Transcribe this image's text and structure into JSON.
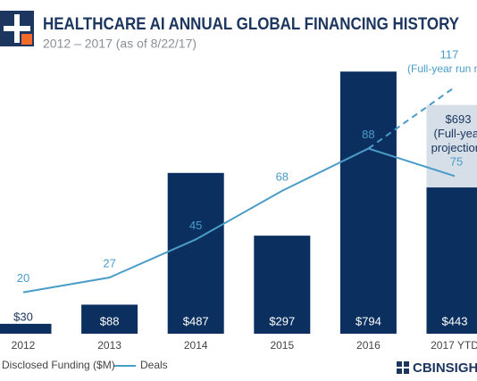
{
  "chart_data": {
    "type": "bar",
    "title": "HEALTHCARE AI ANNUAL GLOBAL FINANCING HISTORY",
    "subtitle": "2012 – 2017 (as of 8/22/17)",
    "categories": [
      "2012",
      "2013",
      "2014",
      "2015",
      "2016",
      "2017 YTD"
    ],
    "series": [
      {
        "name": "Disclosed Funding ($M)",
        "type": "bar",
        "color": "#0b2f5e",
        "values": [
          30,
          88,
          487,
          297,
          794,
          443
        ],
        "value_labels": [
          "$30",
          "$88",
          "$487",
          "$297",
          "$794",
          "$443"
        ]
      },
      {
        "name": "Deals",
        "type": "line",
        "color": "#4a9cc9",
        "values": [
          20,
          27,
          45,
          68,
          88,
          75
        ]
      }
    ],
    "projections": {
      "deals": {
        "value": 117,
        "label": "(Full-year run rate)"
      },
      "funding": {
        "value": 693,
        "value_label": "$693",
        "label_lines": [
          "(Full-year",
          "projection)"
        ],
        "color": "#d6dfe7"
      }
    },
    "source": "CBINSIGHTS"
  }
}
